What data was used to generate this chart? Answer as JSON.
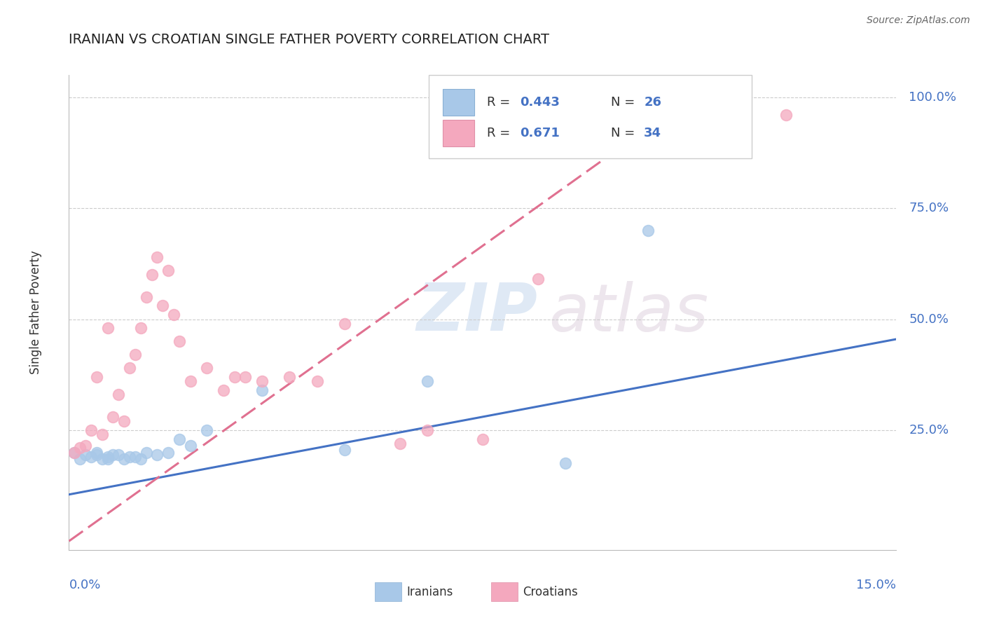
{
  "title": "IRANIAN VS CROATIAN SINGLE FATHER POVERTY CORRELATION CHART",
  "source": "Source: ZipAtlas.com",
  "ylabel": "Single Father Poverty",
  "ytick_labels": [
    "25.0%",
    "50.0%",
    "75.0%",
    "100.0%"
  ],
  "ytick_positions": [
    0.25,
    0.5,
    0.75,
    1.0
  ],
  "xlim": [
    0.0,
    0.15
  ],
  "ylim": [
    -0.02,
    1.05
  ],
  "legend_R_iranian": "0.443",
  "legend_N_iranian": "26",
  "legend_R_croatian": "0.671",
  "legend_N_croatian": "34",
  "iranian_color": "#a8c8e8",
  "croatian_color": "#f4a8be",
  "iranian_line_color": "#4472c4",
  "croatian_line_color": "#e07090",
  "watermark_ZIP": "ZIP",
  "watermark_atlas": "atlas",
  "iranian_x": [
    0.001,
    0.002,
    0.003,
    0.004,
    0.005,
    0.005,
    0.006,
    0.007,
    0.007,
    0.008,
    0.009,
    0.01,
    0.011,
    0.012,
    0.013,
    0.014,
    0.016,
    0.018,
    0.02,
    0.022,
    0.025,
    0.035,
    0.05,
    0.065,
    0.09,
    0.105
  ],
  "iranian_y": [
    0.2,
    0.185,
    0.195,
    0.19,
    0.2,
    0.195,
    0.185,
    0.19,
    0.185,
    0.195,
    0.195,
    0.185,
    0.19,
    0.19,
    0.185,
    0.2,
    0.195,
    0.2,
    0.23,
    0.215,
    0.25,
    0.34,
    0.205,
    0.36,
    0.175,
    0.7
  ],
  "croatian_x": [
    0.001,
    0.002,
    0.003,
    0.004,
    0.005,
    0.006,
    0.007,
    0.008,
    0.009,
    0.01,
    0.011,
    0.012,
    0.013,
    0.014,
    0.015,
    0.016,
    0.017,
    0.018,
    0.019,
    0.02,
    0.022,
    0.025,
    0.028,
    0.03,
    0.032,
    0.035,
    0.04,
    0.045,
    0.05,
    0.06,
    0.065,
    0.075,
    0.085,
    0.13
  ],
  "croatian_y": [
    0.2,
    0.21,
    0.215,
    0.25,
    0.37,
    0.24,
    0.48,
    0.28,
    0.33,
    0.27,
    0.39,
    0.42,
    0.48,
    0.55,
    0.6,
    0.64,
    0.53,
    0.61,
    0.51,
    0.45,
    0.36,
    0.39,
    0.34,
    0.37,
    0.37,
    0.36,
    0.37,
    0.36,
    0.49,
    0.22,
    0.25,
    0.23,
    0.59,
    0.96
  ],
  "iran_line_x": [
    0.0,
    0.15
  ],
  "iran_line_y": [
    0.105,
    0.455
  ],
  "croat_line_x": [
    0.0,
    0.115
  ],
  "croat_line_y": [
    0.0,
    1.02
  ]
}
